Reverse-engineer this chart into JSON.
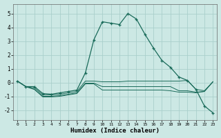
{
  "xlabel": "Humidex (Indice chaleur)",
  "xlim": [
    -0.5,
    23.5
  ],
  "ylim": [
    -2.7,
    5.7
  ],
  "yticks": [
    -2,
    -1,
    0,
    1,
    2,
    3,
    4,
    5
  ],
  "xticks": [
    0,
    1,
    2,
    3,
    4,
    5,
    6,
    7,
    8,
    9,
    10,
    11,
    12,
    13,
    14,
    15,
    16,
    17,
    18,
    19,
    20,
    21,
    22,
    23
  ],
  "bg_color": "#cce8e4",
  "grid_color": "#aacfcb",
  "line_color": "#1a6b5a",
  "line1_x": [
    0,
    1,
    2,
    3,
    4,
    5,
    6,
    7,
    8,
    9,
    10,
    11,
    12,
    13,
    14,
    15,
    16,
    17,
    18,
    19,
    20,
    21,
    22,
    23
  ],
  "line1_y": [
    0.1,
    -0.3,
    -0.3,
    -0.8,
    -0.85,
    -0.75,
    -0.65,
    -0.55,
    0.7,
    3.1,
    4.4,
    4.3,
    4.2,
    5.0,
    4.6,
    3.5,
    2.5,
    1.6,
    1.1,
    0.4,
    0.15,
    -0.5,
    -1.7,
    -2.2
  ],
  "line2_x": [
    0,
    1,
    2,
    3,
    4,
    5,
    6,
    7,
    8,
    9,
    10,
    11,
    12,
    13,
    14,
    15,
    16,
    17,
    18,
    19,
    20,
    21,
    22,
    23
  ],
  "line2_y": [
    0.1,
    -0.3,
    -0.4,
    -0.9,
    -0.9,
    -0.85,
    -0.75,
    -0.65,
    0.1,
    0.1,
    0.05,
    0.05,
    0.05,
    0.1,
    0.1,
    0.1,
    0.1,
    0.1,
    0.1,
    0.1,
    0.15,
    -0.5,
    -0.6,
    0.05
  ],
  "line3_x": [
    0,
    1,
    2,
    3,
    4,
    5,
    6,
    7,
    8,
    9,
    10,
    11,
    12,
    13,
    14,
    15,
    16,
    17,
    18,
    19,
    20,
    21,
    22,
    23
  ],
  "line3_y": [
    0.1,
    -0.3,
    -0.5,
    -1.0,
    -1.0,
    -0.95,
    -0.85,
    -0.75,
    -0.05,
    -0.05,
    -0.3,
    -0.3,
    -0.3,
    -0.3,
    -0.3,
    -0.3,
    -0.3,
    -0.3,
    -0.3,
    -0.6,
    -0.6,
    -0.7,
    -0.65,
    0.05
  ],
  "line4_x": [
    0,
    1,
    2,
    3,
    4,
    5,
    6,
    7,
    8,
    9,
    10,
    11,
    12,
    13,
    14,
    15,
    16,
    17,
    18,
    19,
    20,
    21,
    22,
    23
  ],
  "line4_y": [
    0.1,
    -0.3,
    -0.5,
    -1.05,
    -1.05,
    -1.0,
    -0.9,
    -0.8,
    -0.1,
    -0.1,
    -0.55,
    -0.55,
    -0.55,
    -0.55,
    -0.55,
    -0.55,
    -0.55,
    -0.55,
    -0.6,
    -0.7,
    -0.7,
    -0.75,
    -0.65,
    0.05
  ]
}
